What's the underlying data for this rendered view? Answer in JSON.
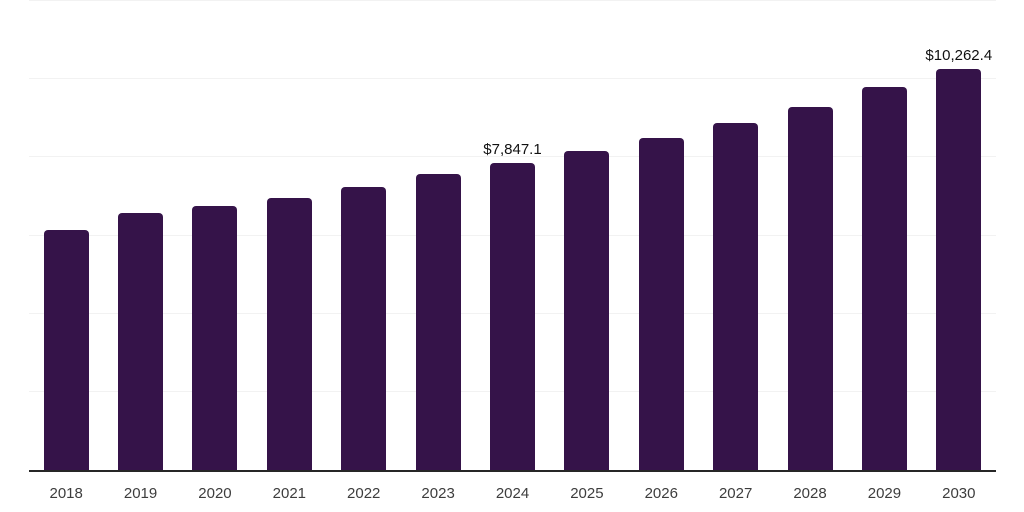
{
  "chart_data": {
    "type": "bar",
    "title": "",
    "xlabel": "",
    "ylabel": "",
    "categories": [
      "2018",
      "2019",
      "2020",
      "2021",
      "2022",
      "2023",
      "2024",
      "2025",
      "2026",
      "2027",
      "2028",
      "2029",
      "2030"
    ],
    "values": [
      6150,
      6580,
      6750,
      6950,
      7230,
      7580,
      7847.1,
      8170,
      8500,
      8890,
      9300,
      9790,
      10262.4
    ],
    "value_labels": {
      "2024": "$7,847.1",
      "2030": "$10,262.4"
    },
    "ylim": [
      0,
      12000
    ],
    "gridline_step": 2000,
    "grid": "horizontal",
    "legend": "none",
    "y_tick_labels_visible": false
  },
  "style": {
    "bar_color": "#351349",
    "grid_color": "#f2f2f2",
    "axis_color": "#262626",
    "tick_label_color": "#3d3d3d",
    "data_label_color": "#111111",
    "background": "#ffffff"
  }
}
